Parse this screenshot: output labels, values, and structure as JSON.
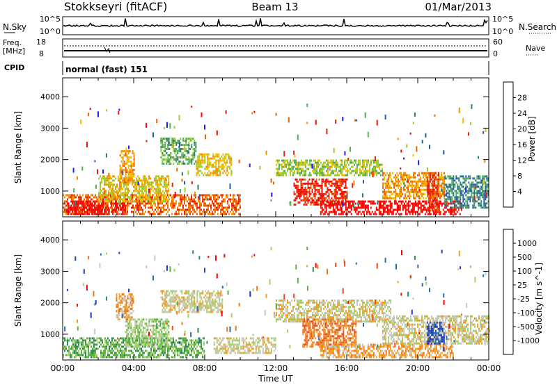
{
  "header": {
    "radar": "Stokkseyri (fitACF)",
    "beam": "Beam 13",
    "date": "01/Mar/2013"
  },
  "top_panels": {
    "nsky_label": "N.Sky",
    "nsearch_label": "N.Search",
    "nsky_ticks": [
      "10^5",
      "10^0"
    ],
    "nsearch_ticks": [
      "10^5",
      "10^0"
    ],
    "freq_label": "Freq.",
    "freq_unit": "[MHz]",
    "freq_ticks": [
      "18",
      "8"
    ],
    "nave_label": "Nave",
    "nave_ticks": [
      "60",
      "0"
    ],
    "cpid_label": "CPID",
    "cpid_value": "normal (fast) 151"
  },
  "colors": {
    "power_scale": [
      "#1a1aff",
      "#1c5cb4",
      "#2e7f6e",
      "#4fae5a",
      "#9ccd2e",
      "#f0c000",
      "#f59000",
      "#f06000",
      "#e62010",
      "#ff0000"
    ],
    "velocity_scale": [
      "#1e3cc8",
      "#2a6ab4",
      "#2e8a5a",
      "#5ab43c",
      "#a6d06a",
      "#c8c8c0",
      "#f0a020",
      "#f07818",
      "#f04818",
      "#ff0000"
    ]
  },
  "chart_data": [
    {
      "type": "heatmap",
      "name": "power",
      "ylabel": "Slant Range [km]",
      "yticks": [
        "1000",
        "2000",
        "3000",
        "4000"
      ],
      "ylim": [
        180,
        4600
      ],
      "xticks": [
        "00:00",
        "04:00",
        "08:00",
        "12:00",
        "16:00",
        "20:00",
        "00:00"
      ],
      "xlim": [
        0,
        24
      ],
      "colorbar_label": "Power [dB]",
      "colorbar_ticks": [
        "4",
        "8",
        "12",
        "16",
        "20",
        "24",
        "28"
      ],
      "regions": [
        {
          "x": [
            0.0,
            10.0
          ],
          "y": [
            300,
            900
          ],
          "level": 7
        },
        {
          "x": [
            0.2,
            3.5
          ],
          "y": [
            300,
            700
          ],
          "level": 9
        },
        {
          "x": [
            2.0,
            6.0
          ],
          "y": [
            700,
            1500
          ],
          "level": 5
        },
        {
          "x": [
            3.2,
            4.0
          ],
          "y": [
            1300,
            2300
          ],
          "level": 6
        },
        {
          "x": [
            5.5,
            7.5
          ],
          "y": [
            1900,
            2700
          ],
          "level": 3
        },
        {
          "x": [
            7.5,
            9.5
          ],
          "y": [
            1500,
            2200
          ],
          "level": 5
        },
        {
          "x": [
            12.0,
            18.0
          ],
          "y": [
            1500,
            2000
          ],
          "level": 4
        },
        {
          "x": [
            13.0,
            16.0
          ],
          "y": [
            600,
            1400
          ],
          "level": 8
        },
        {
          "x": [
            14.5,
            22.5
          ],
          "y": [
            300,
            700
          ],
          "level": 9
        },
        {
          "x": [
            18.0,
            21.5
          ],
          "y": [
            800,
            1600
          ],
          "level": 6
        },
        {
          "x": [
            20.5,
            21.2
          ],
          "y": [
            400,
            1600
          ],
          "level": 8
        },
        {
          "x": [
            21.5,
            24.0
          ],
          "y": [
            500,
            1500
          ],
          "level": 2
        }
      ]
    },
    {
      "type": "heatmap",
      "name": "velocity",
      "ylabel": "Slant Range [km]",
      "yticks": [
        "1000",
        "2000",
        "3000",
        "4000"
      ],
      "ylim": [
        180,
        4600
      ],
      "xticks": [
        "00:00",
        "04:00",
        "08:00",
        "12:00",
        "16:00",
        "20:00",
        "00:00"
      ],
      "xlim": [
        0,
        24
      ],
      "xlabel": "Time UT",
      "colorbar_label": "Velocity [m s^-1]",
      "colorbar_ticks": [
        "1000",
        "500",
        "100",
        "25",
        "-25",
        "-100",
        "-500",
        "-1000"
      ],
      "regions": [
        {
          "x": [
            0.0,
            8.0
          ],
          "y": [
            300,
            900
          ],
          "level": 3
        },
        {
          "x": [
            3.5,
            6.0
          ],
          "y": [
            600,
            1500
          ],
          "level": 4
        },
        {
          "x": [
            3.0,
            4.0
          ],
          "y": [
            1500,
            2300
          ],
          "level": 6
        },
        {
          "x": [
            5.5,
            9.0
          ],
          "y": [
            1700,
            2400
          ],
          "level": 5
        },
        {
          "x": [
            8.5,
            12.0
          ],
          "y": [
            400,
            900
          ],
          "level": 5
        },
        {
          "x": [
            12.0,
            18.5
          ],
          "y": [
            1400,
            2100
          ],
          "level": 5
        },
        {
          "x": [
            13.5,
            16.5
          ],
          "y": [
            600,
            1500
          ],
          "level": 7
        },
        {
          "x": [
            14.5,
            22.0
          ],
          "y": [
            300,
            700
          ],
          "level": 6
        },
        {
          "x": [
            18.0,
            24.0
          ],
          "y": [
            700,
            1600
          ],
          "level": 5
        },
        {
          "x": [
            20.5,
            21.5
          ],
          "y": [
            700,
            1400
          ],
          "level": 0
        }
      ]
    }
  ]
}
